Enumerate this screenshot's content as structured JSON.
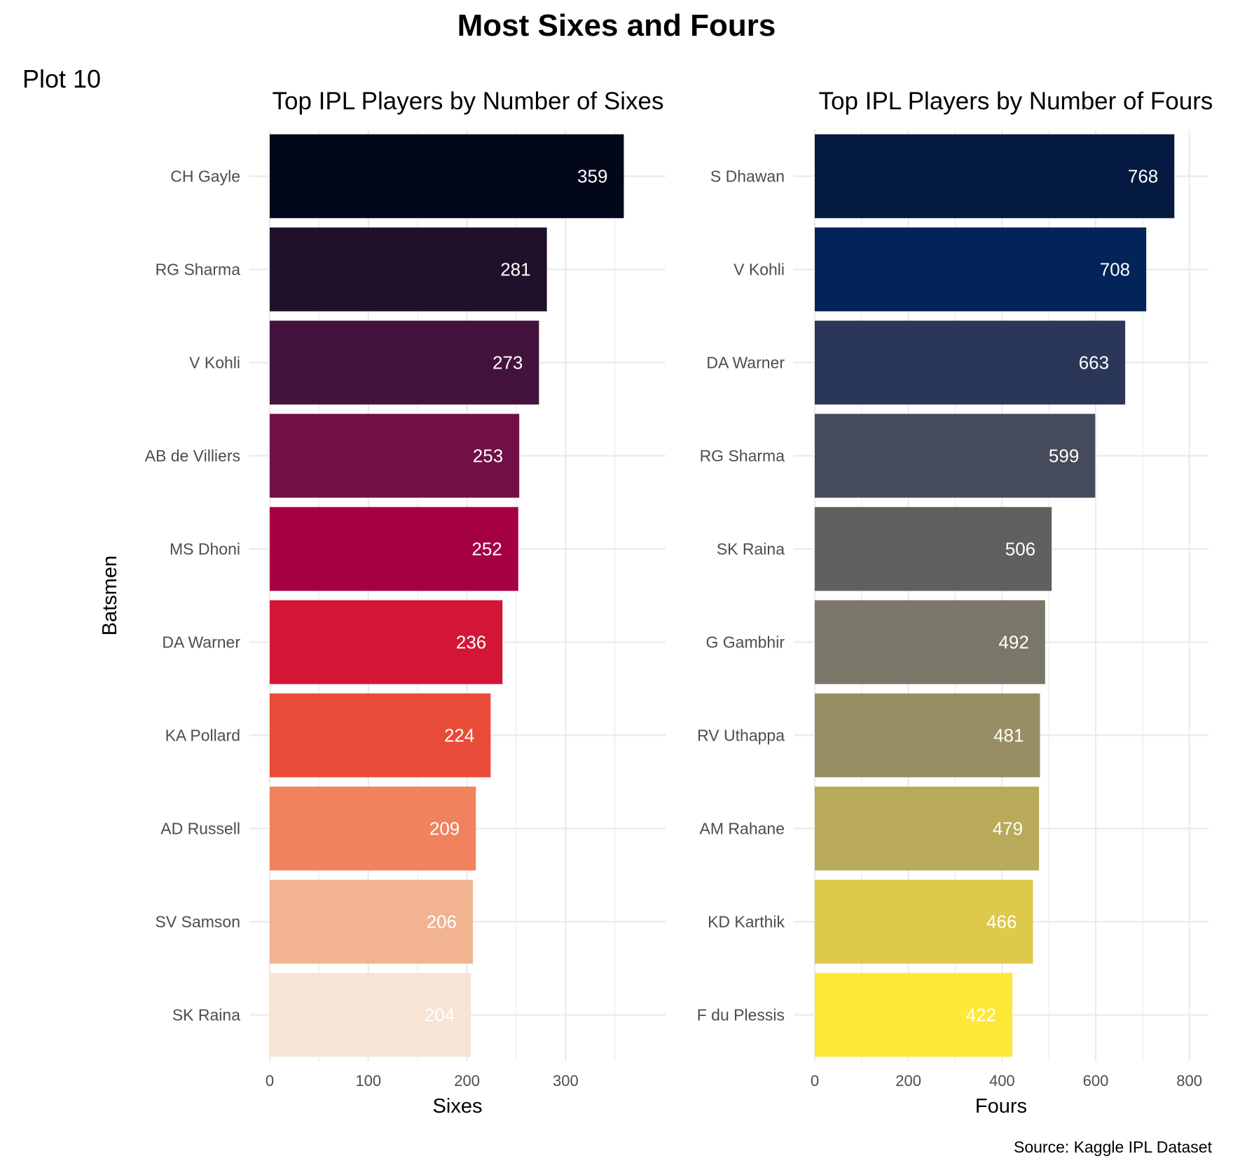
{
  "title": "Most Sixes and Fours",
  "tag": "Plot 10",
  "caption": "Source: Kaggle IPL Dataset",
  "chart_data": [
    {
      "type": "bar",
      "orientation": "horizontal",
      "title": "Top IPL Players by Number of Sixes",
      "xlabel": "Sixes",
      "ylabel": "Batsmen",
      "xlim": [
        0,
        380
      ],
      "xticks": [
        0,
        100,
        200,
        300
      ],
      "grid": true,
      "categories": [
        "CH Gayle",
        "RG Sharma",
        "V Kohli",
        "AB de Villiers",
        "MS Dhoni",
        "DA Warner",
        "KA Pollard",
        "AD Russell",
        "SV Samson",
        "SK Raina"
      ],
      "values": [
        359,
        281,
        273,
        253,
        252,
        236,
        224,
        209,
        206,
        204
      ],
      "colors": [
        "#03071a",
        "#1f102b",
        "#43133d",
        "#720f47",
        "#a60044",
        "#d31637",
        "#e84b37",
        "#f0825e",
        "#f2b390",
        "#f6e5d4"
      ],
      "label_colors": [
        "#ffffff",
        "#ffffff",
        "#ffffff",
        "#ffffff",
        "#ffffff",
        "#ffffff",
        "#ffffff",
        "#ffffff",
        "#ffffff",
        "#ffffff"
      ]
    },
    {
      "type": "bar",
      "orientation": "horizontal",
      "title": "Top IPL Players by Number of Fours",
      "xlabel": "Fours",
      "ylabel": "",
      "xlim": [
        0,
        808
      ],
      "xticks": [
        0,
        200,
        400,
        600,
        800
      ],
      "grid": true,
      "categories": [
        "S Dhawan",
        "V Kohli",
        "DA Warner",
        "RG Sharma",
        "SK Raina",
        "G Gambhir",
        "RV Uthappa",
        "AM Rahane",
        "KD Karthik",
        "F du Plessis"
      ],
      "values": [
        768,
        708,
        663,
        599,
        506,
        492,
        481,
        479,
        466,
        422
      ],
      "colors": [
        "#04193f",
        "#022459",
        "#2a3759",
        "#464b5b",
        "#5f6060",
        "#7a7768",
        "#978f63",
        "#b9aa59",
        "#ddc94a",
        "#fee838"
      ],
      "label_colors": [
        "#ffffff",
        "#ffffff",
        "#ffffff",
        "#ffffff",
        "#ffffff",
        "#ffffff",
        "#ffffff",
        "#ffffff",
        "#ffffff",
        "#ffffff"
      ]
    }
  ]
}
